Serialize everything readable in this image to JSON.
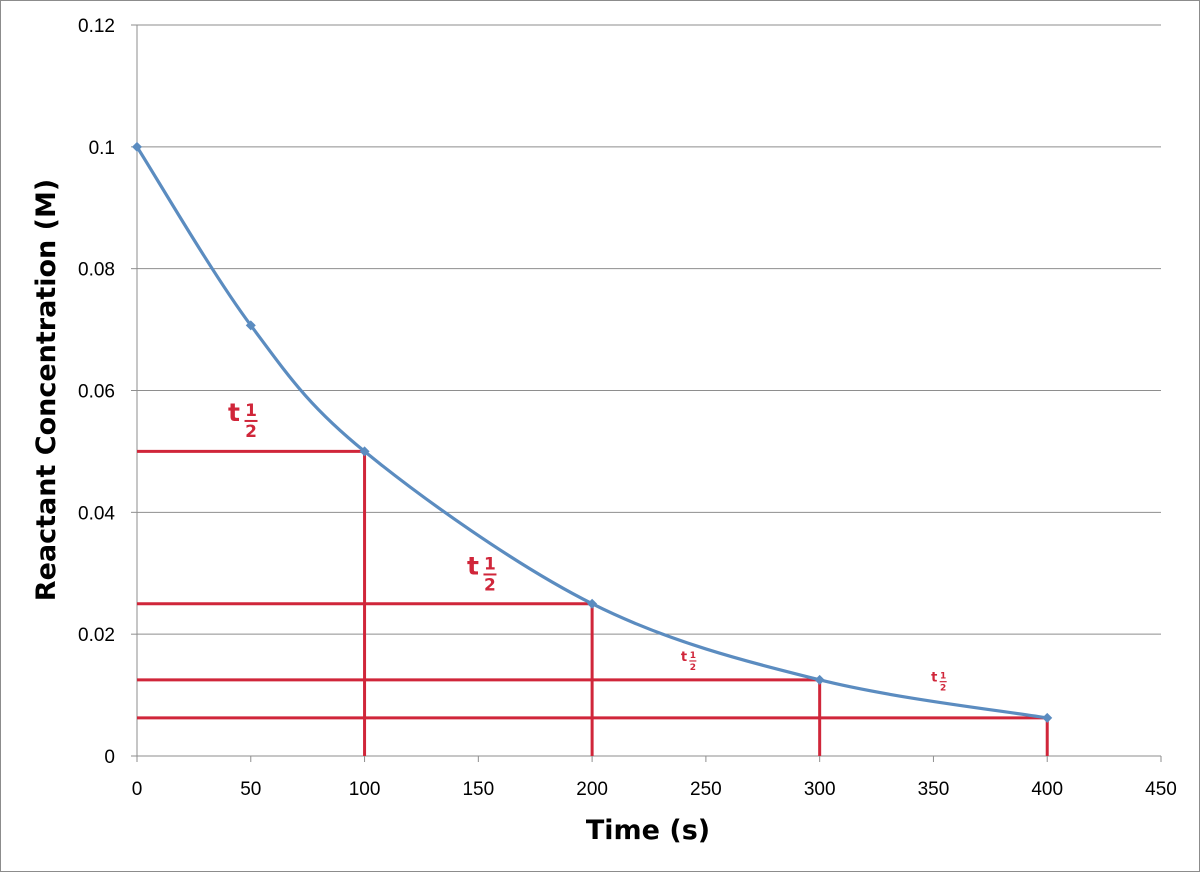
{
  "chart_data": {
    "type": "line",
    "title": "",
    "xlabel": "Time (s)",
    "ylabel": "Reactant Concentration (M)",
    "xlim": [
      0,
      450
    ],
    "ylim": [
      0,
      0.12
    ],
    "x_ticks": [
      "0",
      "50",
      "100",
      "150",
      "200",
      "250",
      "300",
      "350",
      "400",
      "450"
    ],
    "y_ticks": [
      "0",
      "0.02",
      "0.04",
      "0.06",
      "0.08",
      "0.1",
      "0.12"
    ],
    "grid": "horizontal",
    "series": [
      {
        "color": "#5b8cc0",
        "marker": "diamond",
        "smooth": true,
        "points": [
          {
            "x": 0,
            "y": 0.1
          },
          {
            "x": 50,
            "y": 0.0707
          },
          {
            "x": 100,
            "y": 0.05
          },
          {
            "x": 200,
            "y": 0.025
          },
          {
            "x": 300,
            "y": 0.0125
          },
          {
            "x": 400,
            "y": 0.00625
          }
        ]
      }
    ],
    "half_life_guides": {
      "color": "#d0263a",
      "horizontal": [
        {
          "y": 0.05,
          "x_start": 0,
          "x_end": 100
        },
        {
          "y": 0.025,
          "x_start": 0,
          "x_end": 200
        },
        {
          "y": 0.0125,
          "x_start": 0,
          "x_end": 300
        },
        {
          "y": 0.00625,
          "x_start": 0,
          "x_end": 400
        }
      ],
      "vertical": [
        {
          "x": 100,
          "y_top": 0.05
        },
        {
          "x": 200,
          "y_top": 0.025
        },
        {
          "x": 300,
          "y_top": 0.0125
        },
        {
          "x": 400,
          "y_top": 0.00625
        }
      ]
    },
    "annotations": [
      {
        "base": "t",
        "numerator": "1",
        "denominator": "2",
        "x": 40,
        "y": 0.055,
        "size": "large"
      },
      {
        "base": "t",
        "numerator": "1",
        "denominator": "2",
        "x": 145,
        "y": 0.0298,
        "size": "large"
      },
      {
        "base": "t",
        "numerator": "1",
        "denominator": "2",
        "x": 239,
        "y": 0.0156,
        "size": "small"
      },
      {
        "base": "t",
        "numerator": "1",
        "denominator": "2",
        "x": 349,
        "y": 0.0122,
        "size": "small"
      }
    ]
  }
}
